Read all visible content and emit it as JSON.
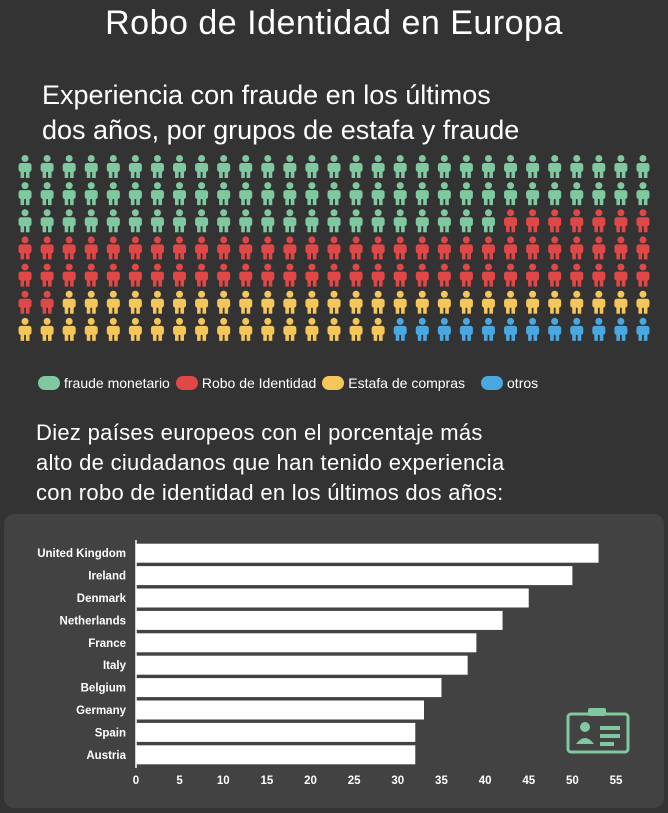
{
  "title": "Robo de Identidad en Europa",
  "subtitle_lines": [
    "Experiencia con fraude en los últimos",
    "dos años, por grupos de estafa y fraude"
  ],
  "pictogram": {
    "columns": 29,
    "rows": 7,
    "counts": [
      {
        "name": "fraude monetario",
        "count": 80,
        "color": "#7fc8a0"
      },
      {
        "name": "Robo de Identidad",
        "count": 67,
        "color": "#e04848"
      },
      {
        "name": "Estafa de compras",
        "count": 44,
        "color": "#f5c65a"
      },
      {
        "name": "otros",
        "count": 12,
        "color": "#4aa8e0"
      }
    ]
  },
  "legend": [
    {
      "label": "fraude monetario",
      "color": "#7fc8a0"
    },
    {
      "label": "Robo de Identidad",
      "color": "#e04848"
    },
    {
      "label": "Estafa de compras",
      "color": "#f5c65a"
    },
    {
      "label": "otros",
      "color": "#4aa8e0"
    }
  ],
  "question_lines": [
    "Diez países europeos con el porcentaje más",
    "alto de ciudadanos que han tenido experiencia",
    "con robo de identidad en los últimos dos años:"
  ],
  "chart_data": {
    "type": "bar",
    "orientation": "horizontal",
    "categories": [
      "United Kingdom",
      "Ireland",
      "Denmark",
      "Netherlands",
      "France",
      "Italy",
      "Belgium",
      "Germany",
      "Spain",
      "Austria"
    ],
    "values": [
      53,
      50,
      45,
      42,
      39,
      38,
      35,
      33,
      32,
      32
    ],
    "xlim": [
      0,
      55
    ],
    "xticks": [
      0,
      5,
      10,
      15,
      20,
      25,
      30,
      35,
      40,
      45,
      50,
      55
    ],
    "xlabel": "",
    "ylabel": "",
    "bar_color": "#ffffff",
    "grid": false
  },
  "icon": "id-card-icon"
}
